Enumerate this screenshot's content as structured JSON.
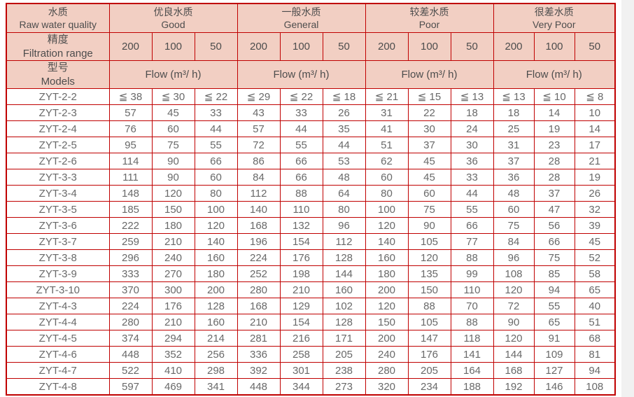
{
  "page": {
    "background": "#f1f1f1",
    "content_background": "#ffffff"
  },
  "table": {
    "colors": {
      "border": "#c00000",
      "header_bg": "#f2cfc3",
      "header_text": "#4d4d4d",
      "body_text": "#696969",
      "body_bg": "#ffffff"
    },
    "header": {
      "raw_water_quality": {
        "zh": "水质",
        "en": "Raw water quality"
      },
      "filtration_range": {
        "zh": "精度",
        "en": "Filtration range"
      },
      "models": {
        "zh": "型号",
        "en": "Models"
      },
      "quality_groups": [
        {
          "zh": "优良水质",
          "en": "Good"
        },
        {
          "zh": "一般水质",
          "en": "General"
        },
        {
          "zh": "较差水质",
          "en": "Poor"
        },
        {
          "zh": "很差水质",
          "en": "Very Poor"
        }
      ],
      "filtration_values": [
        "200",
        "100",
        "50"
      ],
      "flow_label": "Flow (m³/ h)"
    },
    "rows": [
      {
        "model": "ZYT-2-2",
        "values": [
          "≦ 38",
          "≦ 30",
          "≦ 22",
          "≦ 29",
          "≦ 22",
          "≦ 18",
          "≦ 21",
          "≦ 15",
          "≦ 13",
          "≦ 13",
          "≦ 10",
          "≦ 8"
        ]
      },
      {
        "model": "ZYT-2-3",
        "values": [
          "57",
          "45",
          "33",
          "43",
          "33",
          "26",
          "31",
          "22",
          "18",
          "18",
          "14",
          "10"
        ]
      },
      {
        "model": "ZYT-2-4",
        "values": [
          "76",
          "60",
          "44",
          "57",
          "44",
          "35",
          "41",
          "30",
          "24",
          "25",
          "19",
          "14"
        ]
      },
      {
        "model": "ZYT-2-5",
        "values": [
          "95",
          "75",
          "55",
          "72",
          "55",
          "44",
          "51",
          "37",
          "30",
          "31",
          "23",
          "17"
        ]
      },
      {
        "model": "ZYT-2-6",
        "values": [
          "114",
          "90",
          "66",
          "86",
          "66",
          "53",
          "62",
          "45",
          "36",
          "37",
          "28",
          "21"
        ]
      },
      {
        "model": "ZYT-3-3",
        "values": [
          "111",
          "90",
          "60",
          "84",
          "66",
          "48",
          "60",
          "45",
          "33",
          "36",
          "28",
          "19"
        ]
      },
      {
        "model": "ZYT-3-4",
        "values": [
          "148",
          "120",
          "80",
          "112",
          "88",
          "64",
          "80",
          "60",
          "44",
          "48",
          "37",
          "26"
        ]
      },
      {
        "model": "ZYT-3-5",
        "values": [
          "185",
          "150",
          "100",
          "140",
          "110",
          "80",
          "100",
          "75",
          "55",
          "60",
          "47",
          "32"
        ]
      },
      {
        "model": "ZYT-3-6",
        "values": [
          "222",
          "180",
          "120",
          "168",
          "132",
          "96",
          "120",
          "90",
          "66",
          "75",
          "56",
          "39"
        ]
      },
      {
        "model": "ZYT-3-7",
        "values": [
          "259",
          "210",
          "140",
          "196",
          "154",
          "112",
          "140",
          "105",
          "77",
          "84",
          "66",
          "45"
        ]
      },
      {
        "model": "ZYT-3-8",
        "values": [
          "296",
          "240",
          "160",
          "224",
          "176",
          "128",
          "160",
          "120",
          "88",
          "96",
          "75",
          "52"
        ]
      },
      {
        "model": "ZYT-3-9",
        "values": [
          "333",
          "270",
          "180",
          "252",
          "198",
          "144",
          "180",
          "135",
          "99",
          "108",
          "85",
          "58"
        ]
      },
      {
        "model": "ZYT-3-10",
        "values": [
          "370",
          "300",
          "200",
          "280",
          "210",
          "160",
          "200",
          "150",
          "110",
          "120",
          "94",
          "65"
        ]
      },
      {
        "model": "ZYT-4-3",
        "values": [
          "224",
          "176",
          "128",
          "168",
          "129",
          "102",
          "120",
          "88",
          "70",
          "72",
          "55",
          "40"
        ]
      },
      {
        "model": "ZYT-4-4",
        "values": [
          "280",
          "210",
          "160",
          "210",
          "154",
          "128",
          "150",
          "105",
          "88",
          "90",
          "65",
          "51"
        ]
      },
      {
        "model": "ZYT-4-5",
        "values": [
          "374",
          "294",
          "214",
          "281",
          "216",
          "171",
          "200",
          "147",
          "118",
          "120",
          "91",
          "68"
        ]
      },
      {
        "model": "ZYT-4-6",
        "values": [
          "448",
          "352",
          "256",
          "336",
          "258",
          "205",
          "240",
          "176",
          "141",
          "144",
          "109",
          "81"
        ]
      },
      {
        "model": "ZYT-4-7",
        "values": [
          "522",
          "410",
          "298",
          "392",
          "301",
          "238",
          "280",
          "205",
          "164",
          "168",
          "127",
          "94"
        ]
      },
      {
        "model": "ZYT-4-8",
        "values": [
          "597",
          "469",
          "341",
          "448",
          "344",
          "273",
          "320",
          "234",
          "188",
          "192",
          "146",
          "108"
        ]
      }
    ]
  }
}
